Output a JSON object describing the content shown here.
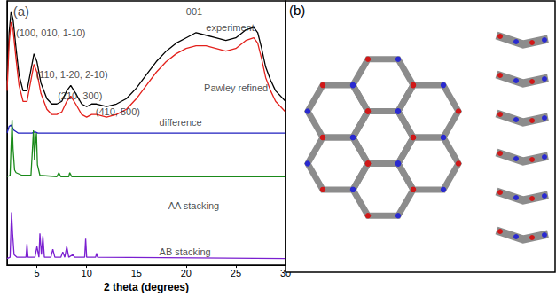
{
  "chart_data": {
    "type": "line",
    "x_label": "2 theta (degrees)",
    "xlim": [
      2,
      30
    ],
    "xticks": [
      5,
      10,
      15,
      20,
      25,
      30
    ],
    "ylim": [
      0,
      100
    ],
    "tick_labels": "x",
    "grid": false,
    "series": [
      {
        "name": "experiment",
        "color": "#000000",
        "label_x": 22,
        "label_y": 90,
        "x": [
          2,
          2.2,
          2.4,
          2.6,
          2.9,
          3.2,
          3.6,
          4.0,
          4.4,
          4.7,
          5.0,
          5.4,
          6.0,
          6.5,
          7.0,
          7.5,
          8.0,
          8.4,
          8.9,
          9.5,
          10.0,
          10.5,
          11.0,
          12.0,
          13.0,
          14.0,
          15.0,
          16.0,
          17.0,
          18.0,
          19.0,
          20.0,
          21.0,
          22.0,
          23.0,
          24.0,
          25.0,
          26.0,
          26.8,
          27.2,
          27.6,
          28.0,
          28.5,
          29.0,
          30.0
        ],
        "values": [
          70,
          88,
          96,
          93,
          82,
          72,
          66,
          66,
          74,
          80,
          77,
          69,
          63,
          61,
          61,
          62,
          66,
          68,
          65,
          61,
          60,
          61,
          61,
          60,
          61,
          63,
          67,
          72,
          77,
          81,
          84,
          86,
          88,
          87,
          86,
          85,
          86,
          89,
          90,
          88,
          82,
          75,
          70,
          66,
          62
        ]
      },
      {
        "name": "Pawley refined",
        "color": "#e3211c",
        "label_x": 21.8,
        "label_y": 67,
        "x": [
          2,
          2.2,
          2.4,
          2.6,
          2.9,
          3.2,
          3.6,
          4.0,
          4.4,
          4.7,
          5.0,
          5.4,
          6.0,
          6.5,
          7.0,
          7.5,
          8.0,
          8.4,
          8.9,
          9.5,
          10.0,
          10.5,
          11.0,
          12.0,
          13.0,
          14.0,
          15.0,
          16.0,
          17.0,
          18.0,
          19.0,
          20.0,
          21.0,
          22.0,
          23.0,
          24.0,
          25.0,
          26.0,
          26.8,
          27.2,
          27.6,
          28.0,
          28.5,
          29.0,
          30.0
        ],
        "values": [
          66,
          84,
          92,
          89,
          78,
          68,
          62,
          62,
          70,
          76,
          73,
          65,
          59,
          57,
          57,
          58,
          62,
          64,
          61,
          57,
          56,
          57,
          57,
          56,
          57,
          59,
          63,
          68,
          73,
          77,
          80,
          82,
          83,
          83,
          82,
          81,
          82,
          85,
          86,
          84,
          78,
          71,
          66,
          62,
          58
        ]
      },
      {
        "name": "difference",
        "color": "#1f1fbf",
        "label_x": 17.3,
        "label_y": 54,
        "x": [
          2,
          2.2,
          2.4,
          2.7,
          3.1,
          4.5,
          4.8,
          5.1,
          30
        ],
        "values": [
          50,
          52.5,
          53,
          51,
          50,
          50,
          50.5,
          50,
          50
        ]
      },
      {
        "name": "AA stacking",
        "color": "#1a8a1a",
        "label_x": 18.2,
        "label_y": 22.6,
        "x": [
          2,
          2.3,
          2.4,
          2.5,
          2.6,
          2.75,
          2.9,
          3.5,
          4.4,
          4.55,
          4.65,
          4.75,
          4.85,
          4.95,
          5.05,
          5.3,
          7.0,
          7.2,
          7.4,
          8.2,
          8.3,
          8.5,
          30
        ],
        "values": [
          33.5,
          34,
          45,
          55,
          44,
          36,
          35,
          34,
          34,
          44,
          51,
          40,
          46,
          50,
          38,
          34,
          33.5,
          35,
          33.5,
          33.5,
          35,
          33.5,
          33.5
        ]
      },
      {
        "name": "AB stacking",
        "color": "#7a1fd0",
        "label_x": 17.3,
        "label_y": 5,
        "x": [
          2,
          2.3,
          2.4,
          2.45,
          2.55,
          2.7,
          3,
          3.9,
          4.0,
          4.1,
          4.8,
          5.0,
          5.2,
          5.3,
          5.45,
          5.6,
          5.75,
          6.4,
          6.6,
          6.8,
          7.4,
          7.6,
          7.8,
          8.0,
          8.2,
          8.6,
          8.8,
          9.8,
          9.9,
          10.0,
          10.9,
          11.0,
          11.1,
          30
        ],
        "values": [
          2.5,
          3,
          15,
          20,
          12,
          4,
          3,
          3,
          8,
          3,
          3,
          7,
          3,
          12,
          4,
          11,
          3,
          3,
          6,
          3,
          3,
          5,
          3,
          7,
          3,
          4,
          3,
          3,
          10,
          3,
          3,
          4.5,
          3,
          2.5
        ]
      }
    ],
    "annotations": [
      {
        "text": "(a)",
        "x": 2.6,
        "y": 96
      },
      {
        "text": "(100, 010, 1-10)",
        "x": 2.9,
        "y": 88
      },
      {
        "text": "(110, 1-20, 2-10)",
        "x": 4.9,
        "y": 72
      },
      {
        "text": "(210, 300)",
        "x": 7.1,
        "y": 64
      },
      {
        "text": "(410, 500)",
        "x": 10.9,
        "y": 58
      },
      {
        "text": "001",
        "x": 20,
        "y": 96
      }
    ]
  },
  "panel_b": {
    "label": "(b)"
  }
}
